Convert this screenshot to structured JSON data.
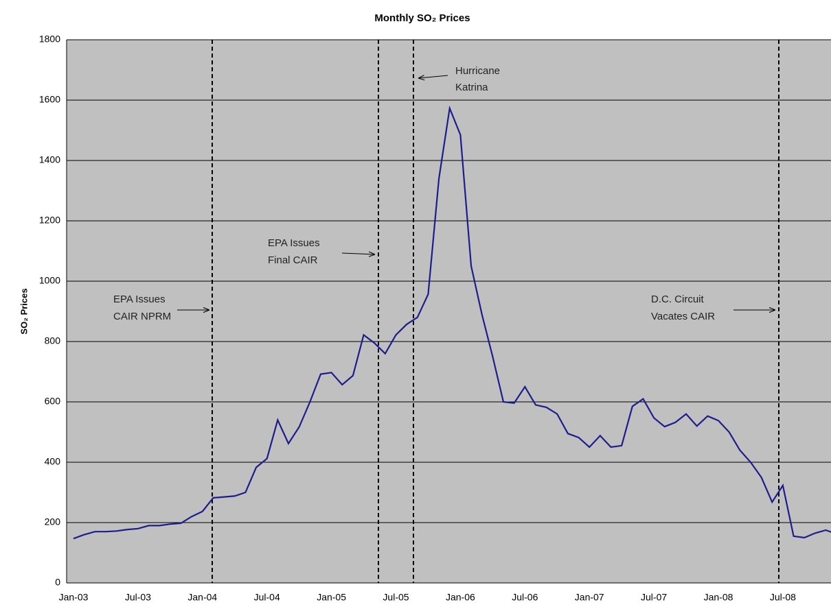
{
  "chart_data": {
    "type": "line",
    "title": "Monthly SO₂ Prices",
    "y_label": "SO₂ Prices",
    "categories": [
      "Jan-03",
      null,
      null,
      null,
      null,
      null,
      "Jul-03",
      null,
      null,
      null,
      null,
      null,
      "Jan-04",
      null,
      null,
      null,
      null,
      null,
      "Jul-04",
      null,
      null,
      null,
      null,
      null,
      "Jan-05",
      null,
      null,
      null,
      null,
      null,
      "Jul-05",
      null,
      null,
      null,
      null,
      null,
      "Jan-06",
      null,
      null,
      null,
      null,
      null,
      "Jul-06",
      null,
      null,
      null,
      null,
      null,
      "Jan-07",
      null,
      null,
      null,
      null,
      null,
      "Jul-07",
      null,
      null,
      null,
      null,
      null,
      "Jan-08",
      null,
      null,
      null,
      null,
      null,
      "Jul-08",
      null,
      null,
      null,
      null,
      null
    ],
    "series": [
      {
        "name": "SO₂ Prices",
        "color": "#1c1c8c",
        "values": [
          147,
          160,
          170,
          170,
          172,
          177,
          180,
          190,
          190,
          195,
          198,
          220,
          237,
          282,
          285,
          288,
          300,
          383,
          412,
          540,
          462,
          517,
          600,
          692,
          697,
          657,
          687,
          822,
          795,
          760,
          822,
          857,
          880,
          957,
          1340,
          1573,
          1485,
          1050,
          890,
          750,
          600,
          596,
          650,
          590,
          582,
          560,
          495,
          482,
          450,
          488,
          450,
          455,
          585,
          610,
          547,
          518,
          532,
          560,
          520,
          553,
          538,
          500,
          440,
          400,
          350,
          268,
          323,
          155,
          150,
          165,
          175,
          162
        ]
      }
    ],
    "ylim": [
      0,
      1800
    ],
    "yticks": [
      0,
      200,
      400,
      600,
      800,
      1000,
      1200,
      1400,
      1600,
      1800
    ],
    "grid": true,
    "annotations": [
      {
        "lines": [
          "EPA Issues",
          "CAIR NPRM"
        ]
      },
      {
        "lines": [
          "EPA Issues",
          "Final CAIR"
        ]
      },
      {
        "lines": [
          "Hurricane",
          "Katrina"
        ]
      },
      {
        "lines": [
          "D.C. Circuit",
          "Vacates CAIR"
        ]
      }
    ]
  }
}
